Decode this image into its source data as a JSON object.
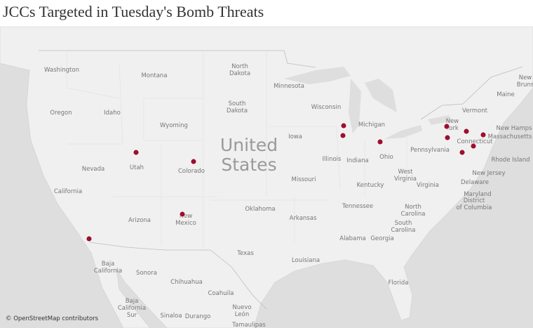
{
  "title": "JCCs Targeted in Tuesday's Bomb Threats",
  "attribution": "© OpenStreetMap contributors",
  "country_label": [
    "United",
    "States"
  ],
  "labels": [
    {
      "lines": [
        "Washington"
      ]
    },
    {
      "lines": [
        "Montana"
      ]
    },
    {
      "lines": [
        "North",
        "Dakota"
      ]
    },
    {
      "lines": [
        "Minnesota"
      ]
    },
    {
      "lines": [
        "Oregon"
      ]
    },
    {
      "lines": [
        "Idaho"
      ]
    },
    {
      "lines": [
        "South",
        "Dakota"
      ]
    },
    {
      "lines": [
        "Wisconsin"
      ]
    },
    {
      "lines": [
        "Michigan"
      ]
    },
    {
      "lines": [
        "Wyoming"
      ]
    },
    {
      "lines": [
        "Iowa"
      ]
    },
    {
      "lines": [
        "Nevada"
      ]
    },
    {
      "lines": [
        "Utah"
      ]
    },
    {
      "lines": [
        "Colorado"
      ]
    },
    {
      "lines": [
        "Illinois"
      ]
    },
    {
      "lines": [
        "Indiana"
      ]
    },
    {
      "lines": [
        "Ohio"
      ]
    },
    {
      "lines": [
        "Pennsylvania"
      ]
    },
    {
      "lines": [
        "New",
        "York"
      ]
    },
    {
      "lines": [
        "Vermont"
      ]
    },
    {
      "lines": [
        "Maine"
      ]
    },
    {
      "lines": [
        "New Hamps"
      ]
    },
    {
      "lines": [
        "Massachusetts"
      ]
    },
    {
      "lines": [
        "Connecticut"
      ]
    },
    {
      "lines": [
        "Rhode Island"
      ]
    },
    {
      "lines": [
        "New Jersey"
      ]
    },
    {
      "lines": [
        "Delaware"
      ]
    },
    {
      "lines": [
        "Maryland"
      ]
    },
    {
      "lines": [
        "District",
        "of Columbia"
      ]
    },
    {
      "lines": [
        "West",
        "Virginia"
      ]
    },
    {
      "lines": [
        "Virginia"
      ]
    },
    {
      "lines": [
        "Kentucky"
      ]
    },
    {
      "lines": [
        "Missouri"
      ]
    },
    {
      "lines": [
        "California"
      ]
    },
    {
      "lines": [
        "Oklahoma"
      ]
    },
    {
      "lines": [
        "Tennessee"
      ]
    },
    {
      "lines": [
        "North",
        "Carolina"
      ]
    },
    {
      "lines": [
        "South",
        "Carolina"
      ]
    },
    {
      "lines": [
        "Arkansas"
      ]
    },
    {
      "lines": [
        "Arizona"
      ]
    },
    {
      "lines": [
        "New",
        "Mexico"
      ]
    },
    {
      "lines": [
        "Alabama"
      ]
    },
    {
      "lines": [
        "Georgia"
      ]
    },
    {
      "lines": [
        "Texas"
      ]
    },
    {
      "lines": [
        "Louisiana"
      ]
    },
    {
      "lines": [
        "Florida"
      ]
    },
    {
      "lines": [
        "Baja",
        "California"
      ]
    },
    {
      "lines": [
        "Sonora"
      ]
    },
    {
      "lines": [
        "Chihuahua"
      ]
    },
    {
      "lines": [
        "Coahuila"
      ]
    },
    {
      "lines": [
        "Baja",
        "California",
        "Sur"
      ]
    },
    {
      "lines": [
        "Sinaloa"
      ]
    },
    {
      "lines": [
        "Durango"
      ]
    },
    {
      "lines": [
        "Nuevo",
        "León"
      ]
    },
    {
      "lines": [
        "Tamaulipas"
      ]
    },
    {
      "lines": [
        "New",
        "Bruns"
      ]
    }
  ]
}
